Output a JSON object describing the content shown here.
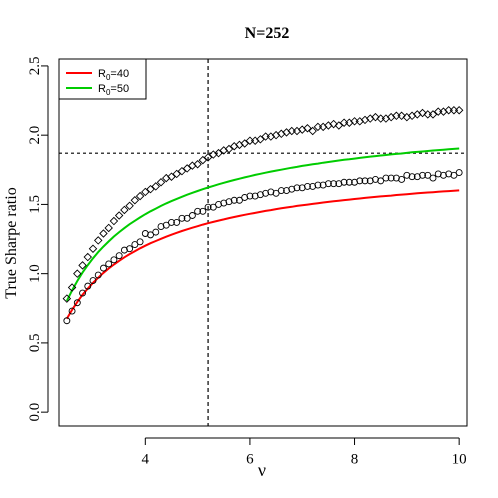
{
  "chart_data": {
    "type": "scatter",
    "title": "N=252",
    "xlabel": "ν",
    "ylabel": "True Sharpe ratio",
    "xlim": [
      2.35,
      10.15
    ],
    "ylim": [
      -0.1,
      2.55
    ],
    "xticks": [
      4,
      6,
      8,
      10
    ],
    "yticks": [
      0.0,
      0.5,
      1.0,
      1.5,
      2.0,
      2.5
    ],
    "xtick_labels": [
      "4",
      "6",
      "8",
      "10"
    ],
    "ytick_labels": [
      "0.0",
      "0.5",
      "1.0",
      "1.5",
      "2.0",
      "2.5"
    ],
    "grid": false,
    "legend_position": "top-left",
    "reference_lines": {
      "vertical_x": 5.2,
      "horizontal_y": 1.87
    },
    "series": [
      {
        "name": "R0=40",
        "legend_main": "R",
        "legend_sub": "0",
        "legend_rest": "=40",
        "line_color": "#ff0000",
        "marker": "circle",
        "x": [
          2.5,
          2.6,
          2.7,
          2.8,
          2.9,
          3.0,
          3.1,
          3.2,
          3.3,
          3.4,
          3.5,
          3.6,
          3.7,
          3.8,
          3.9,
          4.0,
          4.1,
          4.2,
          4.3,
          4.4,
          4.5,
          4.6,
          4.7,
          4.8,
          4.9,
          5.0,
          5.1,
          5.2,
          5.3,
          5.4,
          5.5,
          5.6,
          5.7,
          5.8,
          5.9,
          6.0,
          6.1,
          6.2,
          6.3,
          6.4,
          6.5,
          6.6,
          6.7,
          6.8,
          6.9,
          7.0,
          7.1,
          7.2,
          7.3,
          7.4,
          7.5,
          7.6,
          7.7,
          7.8,
          7.9,
          8.0,
          8.1,
          8.2,
          8.3,
          8.4,
          8.5,
          8.6,
          8.7,
          8.8,
          8.9,
          9.0,
          9.1,
          9.2,
          9.3,
          9.4,
          9.5,
          9.6,
          9.7,
          9.8,
          9.9,
          10.0
        ],
        "y": [
          0.66,
          0.73,
          0.79,
          0.86,
          0.91,
          0.95,
          0.99,
          1.04,
          1.07,
          1.1,
          1.13,
          1.17,
          1.18,
          1.21,
          1.23,
          1.29,
          1.28,
          1.3,
          1.34,
          1.35,
          1.37,
          1.37,
          1.4,
          1.4,
          1.42,
          1.45,
          1.45,
          1.48,
          1.48,
          1.5,
          1.51,
          1.52,
          1.53,
          1.53,
          1.55,
          1.56,
          1.56,
          1.57,
          1.58,
          1.59,
          1.58,
          1.6,
          1.6,
          1.61,
          1.62,
          1.62,
          1.63,
          1.63,
          1.64,
          1.64,
          1.65,
          1.65,
          1.65,
          1.66,
          1.66,
          1.66,
          1.67,
          1.67,
          1.67,
          1.68,
          1.67,
          1.69,
          1.69,
          1.69,
          1.68,
          1.71,
          1.7,
          1.7,
          1.71,
          1.71,
          1.69,
          1.72,
          1.71,
          1.72,
          1.71,
          1.73
        ],
        "fit": [
          0.675,
          0.739,
          0.796,
          0.847,
          0.893,
          0.934,
          0.971,
          1.006,
          1.037,
          1.066,
          1.093,
          1.118,
          1.141,
          1.162,
          1.183,
          1.202,
          1.22,
          1.236,
          1.252,
          1.267,
          1.281,
          1.295,
          1.308,
          1.32,
          1.332,
          1.343,
          1.354,
          1.364,
          1.374,
          1.383,
          1.392,
          1.401,
          1.409,
          1.417,
          1.425,
          1.432,
          1.439,
          1.446,
          1.453,
          1.459,
          1.466,
          1.472,
          1.478,
          1.483,
          1.489,
          1.494,
          1.499,
          1.504,
          1.509,
          1.514,
          1.518,
          1.523,
          1.527,
          1.531,
          1.535,
          1.539,
          1.543,
          1.547,
          1.551,
          1.554,
          1.558,
          1.561,
          1.564,
          1.568,
          1.571,
          1.574,
          1.577,
          1.58,
          1.583,
          1.586,
          1.588,
          1.591,
          1.594,
          1.596,
          1.599,
          1.601
        ]
      },
      {
        "name": "R0=50",
        "legend_main": "R",
        "legend_sub": "0",
        "legend_rest": "=50",
        "line_color": "#00cc00",
        "marker": "diamond",
        "x": [
          2.5,
          2.6,
          2.7,
          2.8,
          2.9,
          3.0,
          3.1,
          3.2,
          3.3,
          3.4,
          3.5,
          3.6,
          3.7,
          3.8,
          3.9,
          4.0,
          4.1,
          4.2,
          4.3,
          4.4,
          4.5,
          4.6,
          4.7,
          4.8,
          4.9,
          5.0,
          5.1,
          5.2,
          5.3,
          5.4,
          5.5,
          5.6,
          5.7,
          5.8,
          5.9,
          6.0,
          6.1,
          6.2,
          6.3,
          6.4,
          6.5,
          6.6,
          6.7,
          6.8,
          6.9,
          7.0,
          7.1,
          7.2,
          7.3,
          7.4,
          7.5,
          7.6,
          7.7,
          7.8,
          7.9,
          8.0,
          8.1,
          8.2,
          8.3,
          8.4,
          8.5,
          8.6,
          8.7,
          8.8,
          8.9,
          9.0,
          9.1,
          9.2,
          9.3,
          9.4,
          9.5,
          9.6,
          9.7,
          9.8,
          9.9,
          10.0
        ],
        "y": [
          0.82,
          0.9,
          1.0,
          1.06,
          1.12,
          1.18,
          1.24,
          1.29,
          1.33,
          1.38,
          1.42,
          1.46,
          1.49,
          1.53,
          1.56,
          1.59,
          1.61,
          1.63,
          1.66,
          1.69,
          1.7,
          1.72,
          1.74,
          1.76,
          1.78,
          1.79,
          1.82,
          1.84,
          1.86,
          1.87,
          1.89,
          1.9,
          1.92,
          1.93,
          1.94,
          1.96,
          1.96,
          1.97,
          1.99,
          1.99,
          2.0,
          2.01,
          2.02,
          2.03,
          2.03,
          2.04,
          2.05,
          2.03,
          2.06,
          2.06,
          2.07,
          2.08,
          2.07,
          2.09,
          2.09,
          2.1,
          2.1,
          2.11,
          2.12,
          2.13,
          2.12,
          2.12,
          2.13,
          2.14,
          2.14,
          2.13,
          2.14,
          2.15,
          2.16,
          2.15,
          2.15,
          2.17,
          2.17,
          2.18,
          2.18,
          2.18
        ],
        "fit": [
          0.803,
          0.879,
          0.947,
          1.008,
          1.062,
          1.111,
          1.156,
          1.196,
          1.233,
          1.268,
          1.3,
          1.329,
          1.357,
          1.382,
          1.406,
          1.429,
          1.45,
          1.47,
          1.489,
          1.507,
          1.524,
          1.54,
          1.555,
          1.57,
          1.584,
          1.597,
          1.61,
          1.622,
          1.634,
          1.645,
          1.656,
          1.666,
          1.676,
          1.686,
          1.695,
          1.704,
          1.713,
          1.721,
          1.729,
          1.737,
          1.744,
          1.751,
          1.758,
          1.765,
          1.771,
          1.778,
          1.784,
          1.79,
          1.795,
          1.801,
          1.806,
          1.812,
          1.817,
          1.822,
          1.826,
          1.831,
          1.836,
          1.84,
          1.845,
          1.849,
          1.853,
          1.857,
          1.861,
          1.865,
          1.868,
          1.872,
          1.876,
          1.879,
          1.882,
          1.886,
          1.889,
          1.892,
          1.895,
          1.898,
          1.901,
          1.904
        ]
      }
    ]
  }
}
